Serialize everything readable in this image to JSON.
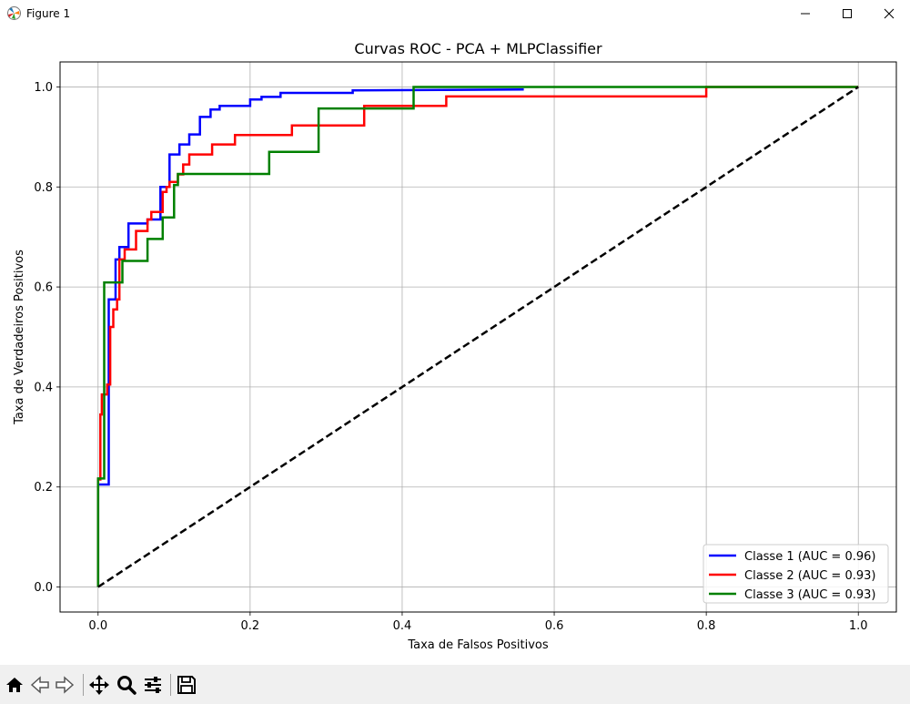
{
  "window": {
    "title": "Figure 1",
    "icons": {
      "app": "matplotlib-figure-icon",
      "minimize": "minimize-icon",
      "maximize": "maximize-icon",
      "close": "close-icon"
    }
  },
  "toolbar": {
    "tools": [
      "home-icon",
      "back-arrow-icon",
      "forward-arrow-icon",
      "pan-move-icon",
      "zoom-magnifier-icon",
      "configure-subplots-icon",
      "save-icon"
    ]
  },
  "chart_data": {
    "type": "line",
    "title": "Curvas ROC - PCA + MLPClassifier",
    "xlabel": "Taxa de Falsos Positivos",
    "ylabel": "Taxa de Verdadeiros Positivos",
    "xlim": [
      -0.05,
      1.05
    ],
    "ylim": [
      -0.05,
      1.05
    ],
    "xticks": [
      0.0,
      0.2,
      0.4,
      0.6,
      0.8,
      1.0
    ],
    "xtick_labels": [
      "0.0",
      "0.2",
      "0.4",
      "0.6",
      "0.8",
      "1.0"
    ],
    "yticks": [
      0.0,
      0.2,
      0.4,
      0.6,
      0.8,
      1.0
    ],
    "ytick_labels": [
      "0.0",
      "0.2",
      "0.4",
      "0.6",
      "0.8",
      "1.0"
    ],
    "grid": true,
    "legend_position": "lower-right",
    "series": [
      {
        "name": "Classe 1 (AUC = 0.96)",
        "color": "#0000ff",
        "x": [
          0,
          0,
          0.003,
          0.003,
          0.014,
          0.014,
          0.023,
          0.023,
          0.028,
          0.028,
          0.04,
          0.04,
          0.065,
          0.065,
          0.082,
          0.082,
          0.094,
          0.094,
          0.107,
          0.107,
          0.12,
          0.12,
          0.134,
          0.134,
          0.148,
          0.148,
          0.16,
          0.16,
          0.2,
          0.2,
          0.215,
          0.215,
          0.24,
          0.24,
          0.335,
          0.335,
          0.56
        ],
        "y": [
          0,
          0.205,
          0.205,
          0.205,
          0.205,
          0.575,
          0.575,
          0.655,
          0.655,
          0.68,
          0.68,
          0.727,
          0.727,
          0.735,
          0.735,
          0.8,
          0.8,
          0.865,
          0.865,
          0.885,
          0.885,
          0.905,
          0.905,
          0.94,
          0.94,
          0.955,
          0.955,
          0.962,
          0.962,
          0.975,
          0.975,
          0.98,
          0.98,
          0.988,
          0.988,
          0.993,
          0.995
        ]
      },
      {
        "name": "Classe 2 (AUC = 0.93)",
        "color": "#ff0000",
        "x": [
          0,
          0,
          0.003,
          0.003,
          0.005,
          0.005,
          0.012,
          0.012,
          0.016,
          0.016,
          0.02,
          0.02,
          0.025,
          0.025,
          0.028,
          0.028,
          0.035,
          0.035,
          0.05,
          0.05,
          0.065,
          0.065,
          0.07,
          0.07,
          0.085,
          0.085,
          0.09,
          0.09,
          0.094,
          0.094,
          0.105,
          0.105,
          0.112,
          0.112,
          0.12,
          0.12,
          0.15,
          0.15,
          0.18,
          0.18,
          0.255,
          0.255,
          0.35,
          0.35,
          0.458,
          0.458,
          0.8,
          0.8,
          1.0
        ],
        "y": [
          0,
          0.215,
          0.215,
          0.345,
          0.345,
          0.385,
          0.385,
          0.405,
          0.405,
          0.52,
          0.52,
          0.555,
          0.555,
          0.575,
          0.575,
          0.655,
          0.655,
          0.675,
          0.675,
          0.712,
          0.712,
          0.735,
          0.735,
          0.75,
          0.75,
          0.79,
          0.79,
          0.8,
          0.8,
          0.81,
          0.81,
          0.825,
          0.825,
          0.845,
          0.845,
          0.865,
          0.865,
          0.885,
          0.885,
          0.904,
          0.904,
          0.923,
          0.923,
          0.962,
          0.962,
          0.981,
          0.981,
          1.0,
          1.0
        ]
      },
      {
        "name": "Classe 3 (AUC = 0.93)",
        "color": "#008000",
        "x": [
          0,
          0,
          0.008,
          0.008,
          0.032,
          0.032,
          0.065,
          0.065,
          0.085,
          0.085,
          0.1,
          0.1,
          0.105,
          0.105,
          0.225,
          0.225,
          0.29,
          0.29,
          0.35,
          0.35,
          0.415,
          0.415,
          1.0
        ],
        "y": [
          0,
          0.217,
          0.217,
          0.609,
          0.609,
          0.652,
          0.652,
          0.696,
          0.696,
          0.739,
          0.739,
          0.804,
          0.804,
          0.826,
          0.826,
          0.87,
          0.87,
          0.957,
          0.957,
          0.957,
          0.957,
          1.0,
          1.0
        ]
      },
      {
        "name": "",
        "color": "#000000",
        "dashed": true,
        "x": [
          0,
          1
        ],
        "y": [
          0,
          1
        ]
      }
    ]
  }
}
